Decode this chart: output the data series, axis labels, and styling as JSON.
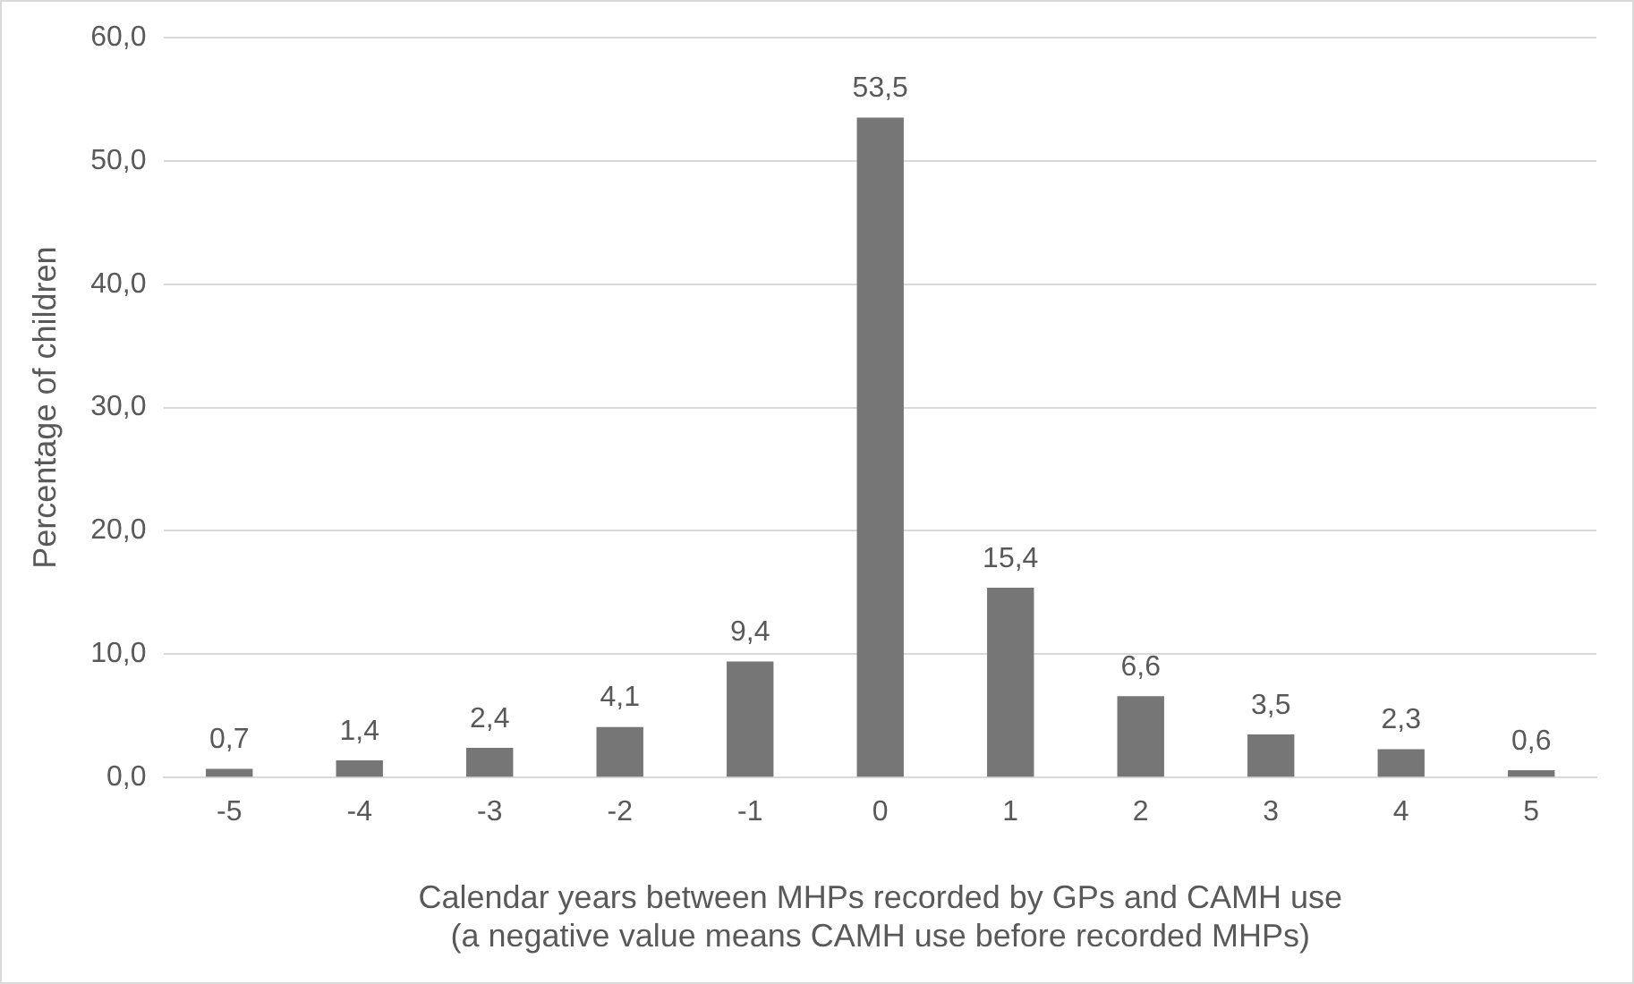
{
  "chart_data": {
    "type": "bar",
    "xlabel": "Calendar years between MHPs recorded by GPs and CAMH use\n(a negative value means CAMH use before recorded MHPs)",
    "ylabel": "Percentage of children",
    "categories": [
      "-5",
      "-4",
      "-3",
      "-2",
      "-1",
      "0",
      "1",
      "2",
      "3",
      "4",
      "5"
    ],
    "values": [
      0.7,
      1.4,
      2.4,
      4.1,
      9.4,
      53.5,
      15.4,
      6.6,
      3.5,
      2.3,
      0.6
    ],
    "value_labels": [
      "0,7",
      "1,4",
      "2,4",
      "4,1",
      "9,4",
      "53,5",
      "15,4",
      "6,6",
      "3,5",
      "2,3",
      "0,6"
    ],
    "color": "#767676",
    "ylim": [
      0,
      60
    ],
    "yticks": [
      {
        "value": 0,
        "label": "0,0"
      },
      {
        "value": 10,
        "label": "10,0"
      },
      {
        "value": 20,
        "label": "20,0"
      },
      {
        "value": 30,
        "label": "30,0"
      },
      {
        "value": 40,
        "label": "40,0"
      },
      {
        "value": 50,
        "label": "50,0"
      },
      {
        "value": 60,
        "label": "60,0"
      }
    ],
    "grid": "y"
  }
}
